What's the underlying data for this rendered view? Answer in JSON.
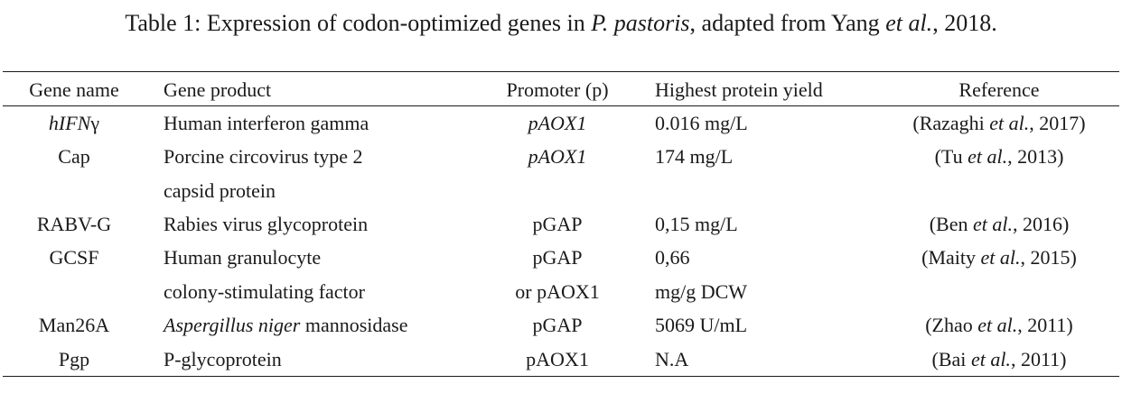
{
  "caption": {
    "prefix": "Table 1: Expression of codon-optimized genes in ",
    "species": "P. pastoris",
    "middle": ", adapted from Yang ",
    "etal": "et al.",
    "suffix": ", 2018."
  },
  "headers": {
    "gene_name": "Gene name",
    "gene_product": "Gene product",
    "promoter": "Promoter (p)",
    "yield": "Highest protein yield",
    "reference": "Reference"
  },
  "rows": [
    {
      "gene_a": "hIFN",
      "gene_b": "γ",
      "product_lines": [
        "Human interferon gamma"
      ],
      "promoter_lines": [
        "pAOX1"
      ],
      "yield_lines": [
        "0.016 mg/L"
      ],
      "ref_author": "(Razaghi ",
      "ref_etal": "et al.",
      "ref_year": ", 2017)"
    },
    {
      "gene_a": "Cap",
      "product_lines": [
        "Porcine circovirus type 2",
        "capsid protein"
      ],
      "promoter_lines": [
        "pAOX1"
      ],
      "yield_lines": [
        "174 mg/L"
      ],
      "ref_author": "(Tu ",
      "ref_etal": "et al.",
      "ref_year": ", 2013)"
    },
    {
      "gene_a": "RABV-G",
      "product_lines": [
        "Rabies virus glycoprotein"
      ],
      "promoter_lines": [
        "pGAP"
      ],
      "yield_lines": [
        "0,15 mg/L"
      ],
      "ref_author": "(Ben ",
      "ref_etal": "et al.",
      "ref_year": ", 2016)"
    },
    {
      "gene_a": "GCSF",
      "product_lines": [
        "Human granulocyte",
        "colony-stimulating factor"
      ],
      "promoter_lines": [
        "pGAP",
        "or pAOX1"
      ],
      "yield_lines": [
        "0,66",
        "mg/g DCW"
      ],
      "ref_author": "(Maity ",
      "ref_etal": "et al.",
      "ref_year": ", 2015)"
    },
    {
      "gene_a": "Man26A",
      "product_italic": "Aspergillus niger",
      "product_rest": " mannosidase",
      "promoter_lines": [
        "pGAP"
      ],
      "yield_lines": [
        "5069 U/mL"
      ],
      "ref_author": "(Zhao ",
      "ref_etal": "et al.",
      "ref_year": ", 2011)"
    },
    {
      "gene_a": "Pgp",
      "product_lines": [
        "P-glycoprotein"
      ],
      "promoter_lines": [
        "pAOX1"
      ],
      "yield_lines": [
        "N.A"
      ],
      "ref_author": "(Bai ",
      "ref_etal": "et al.",
      "ref_year": ", 2011)"
    }
  ]
}
